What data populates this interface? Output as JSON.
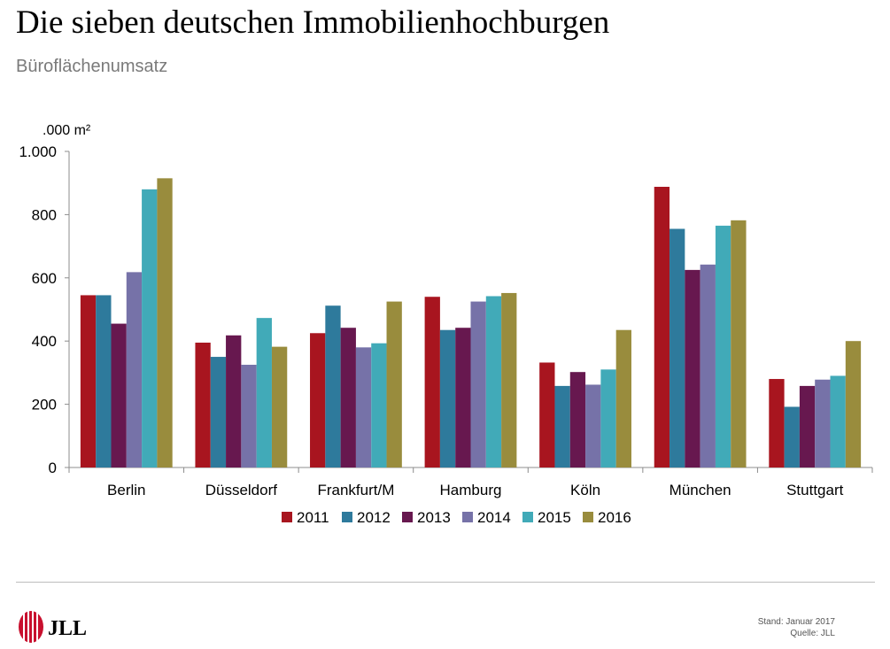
{
  "title": "Die sieben deutschen Immobilienhochburgen",
  "subtitle": "Büroflächenumsatz",
  "footer": {
    "stand": "Stand: Januar 2017",
    "quelle": "Quelle: JLL",
    "logo_text": "JLL"
  },
  "chart_data": {
    "type": "bar",
    "unit_label": ".000 m²",
    "categories": [
      "Berlin",
      "Düsseldorf",
      "Frankfurt/M",
      "Hamburg",
      "Köln",
      "München",
      "Stuttgart"
    ],
    "series": [
      {
        "name": "2011",
        "color": "#a8151f",
        "values": [
          545,
          395,
          425,
          540,
          332,
          888,
          280
        ]
      },
      {
        "name": "2012",
        "color": "#2e7a9c",
        "values": [
          545,
          350,
          512,
          435,
          258,
          755,
          192
        ]
      },
      {
        "name": "2013",
        "color": "#67184f",
        "values": [
          455,
          418,
          442,
          442,
          302,
          625,
          258
        ]
      },
      {
        "name": "2014",
        "color": "#7672a8",
        "values": [
          618,
          325,
          380,
          525,
          262,
          642,
          278
        ]
      },
      {
        "name": "2015",
        "color": "#41aab8",
        "values": [
          880,
          473,
          393,
          542,
          310,
          765,
          290
        ]
      },
      {
        "name": "2016",
        "color": "#998c3d",
        "values": [
          915,
          382,
          525,
          552,
          435,
          782,
          400
        ]
      }
    ],
    "ylim": [
      0,
      1000
    ],
    "yticks": [
      {
        "value": 0,
        "label": "0"
      },
      {
        "value": 200,
        "label": "200"
      },
      {
        "value": 400,
        "label": "400"
      },
      {
        "value": 600,
        "label": "600"
      },
      {
        "value": 800,
        "label": "800"
      },
      {
        "value": 1000,
        "label": "1.000"
      }
    ],
    "legend_position": "bottom",
    "grid": false
  }
}
